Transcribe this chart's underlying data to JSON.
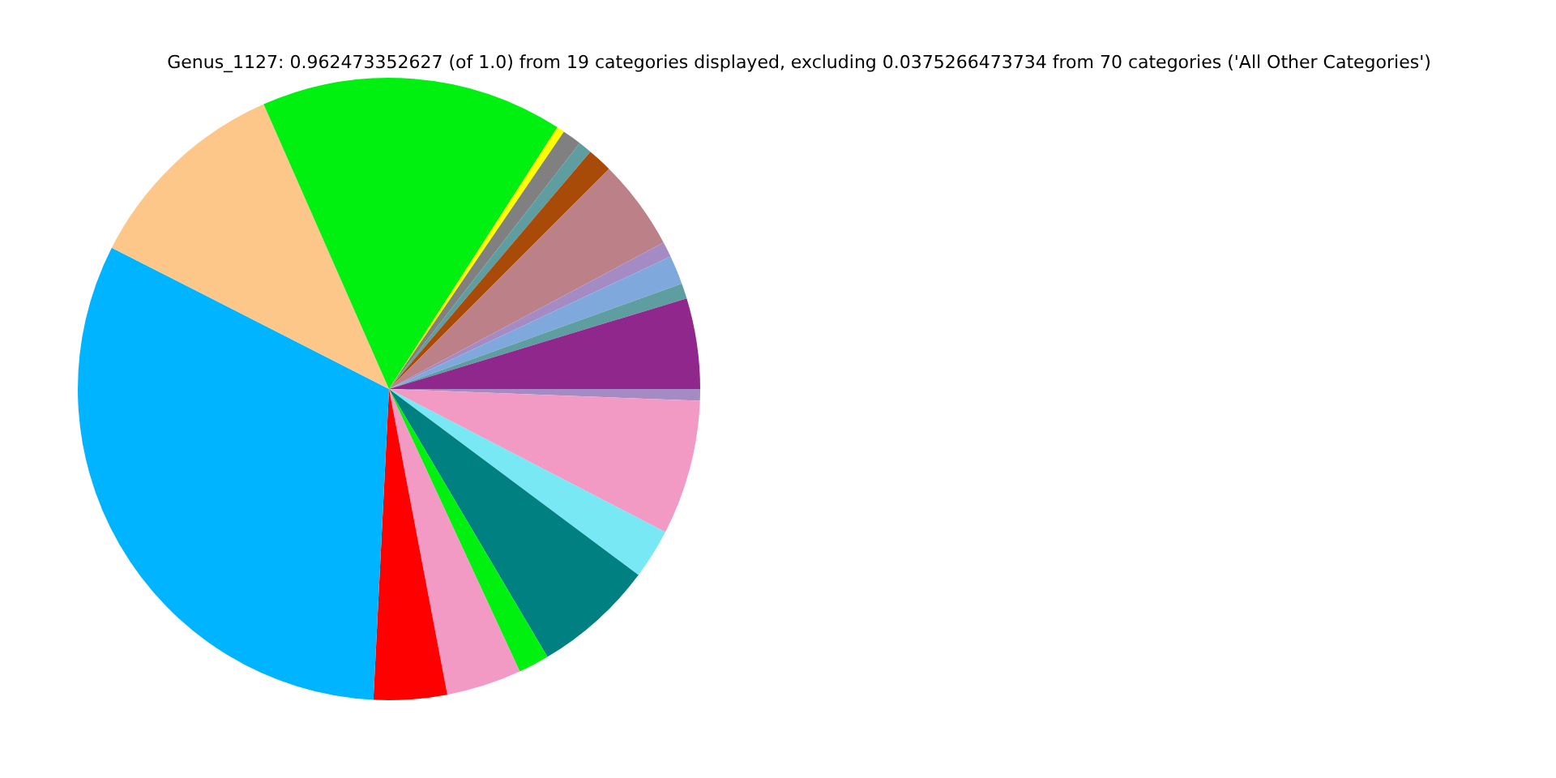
{
  "chart_data": {
    "type": "pie",
    "title": "Genus_1127: 0.962473352627 (of 1.0) from 19 categories displayed, excluding 0.0375266473734 from 70 categories ('All Other Categories')",
    "categories": [
      null,
      null,
      null,
      null,
      null,
      null,
      null,
      null,
      null,
      null,
      null,
      null,
      null,
      null,
      null,
      null,
      null,
      null,
      null
    ],
    "values": [
      0.6,
      7.0,
      2.6,
      6.3,
      1.6,
      3.9,
      3.8,
      31.7,
      10.9,
      15.7,
      0.4,
      1.0,
      0.7,
      1.3,
      4.7,
      0.8,
      1.5,
      0.8,
      4.7
    ],
    "colors": [
      "#a48bc4",
      "#f39ac4",
      "#78e8f4",
      "#008080",
      "#00f010",
      "#f39ac4",
      "#ff0000",
      "#00b4ff",
      "#fdc78a",
      "#00f010",
      "#ffff00",
      "#808080",
      "#5f9ea0",
      "#a84a08",
      "#bc8188",
      "#a48bc4",
      "#7fa9dc",
      "#5f9ea0",
      "#90278c"
    ],
    "legend": false
  }
}
